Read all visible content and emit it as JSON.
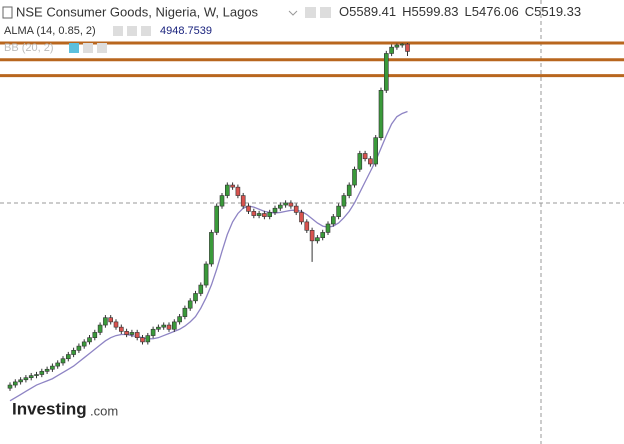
{
  "chart_data": {
    "type": "candlestick",
    "title": "NSE Consumer Goods, Nigeria, W, Lagos",
    "ohlc_labels": [
      "O",
      "H",
      "L",
      "C"
    ],
    "indicator": {
      "name": "ALMA (14, 0.85, 2)",
      "color": "#8e84c4",
      "values": [
        2200,
        2230,
        2260,
        2290,
        2320,
        2350,
        2370,
        2390,
        2410,
        2440,
        2470,
        2500,
        2530,
        2570,
        2610,
        2650,
        2690,
        2730,
        2770,
        2800,
        2820,
        2830,
        2830,
        2820,
        2810,
        2800,
        2790,
        2790,
        2800,
        2820,
        2840,
        2860,
        2880,
        2910,
        2950,
        3000,
        3080,
        3180,
        3300,
        3450,
        3620,
        3780,
        3900,
        3980,
        4030,
        4050,
        4040,
        4020,
        4000,
        3990,
        3985,
        3990,
        4000,
        4010,
        4010,
        4000,
        3970,
        3930,
        3890,
        3860,
        3850,
        3860,
        3890,
        3940,
        4000,
        4080,
        4180,
        4280,
        4380,
        4480,
        4600,
        4720,
        4830,
        4900,
        4930,
        4948.7539
      ]
    },
    "hidden_indicator": "BB (20, 2)",
    "open": [
      2320,
      2350,
      2380,
      2400,
      2420,
      2440,
      2450,
      2480,
      2500,
      2530,
      2560,
      2600,
      2640,
      2680,
      2720,
      2760,
      2800,
      2850,
      2920,
      2990,
      2950,
      2900,
      2860,
      2830,
      2850,
      2800,
      2760,
      2820,
      2880,
      2900,
      2920,
      2880,
      2950,
      3000,
      3080,
      3150,
      3220,
      3300,
      3500,
      3800,
      4050,
      4150,
      4250,
      4230,
      4150,
      4050,
      4000,
      3960,
      3980,
      3950,
      3990,
      4030,
      4060,
      4080,
      4050,
      3990,
      3900,
      3820,
      3720,
      3750,
      3800,
      3880,
      3950,
      4050,
      4150,
      4250,
      4400,
      4550,
      4500,
      4450,
      4700,
      5150,
      5500,
      5560,
      5580,
      5589.41
    ],
    "high": [
      2375,
      2405,
      2425,
      2445,
      2465,
      2475,
      2505,
      2525,
      2555,
      2585,
      2625,
      2665,
      2705,
      2745,
      2785,
      2825,
      2875,
      2945,
      3015,
      3015,
      2975,
      2925,
      2885,
      2875,
      2875,
      2825,
      2845,
      2905,
      2925,
      2945,
      2945,
      2975,
      3025,
      3105,
      3175,
      3245,
      3325,
      3525,
      3825,
      4075,
      4175,
      4275,
      4275,
      4255,
      4175,
      4075,
      4025,
      4005,
      4005,
      4015,
      4055,
      4085,
      4105,
      4105,
      4075,
      4015,
      3925,
      3845,
      3775,
      3825,
      3905,
      3975,
      4075,
      4175,
      4275,
      4425,
      4575,
      4575,
      4525,
      4725,
      5175,
      5525,
      5585,
      5595,
      5598,
      5599.83
    ],
    "low": [
      2295,
      2325,
      2355,
      2375,
      2395,
      2415,
      2425,
      2455,
      2475,
      2505,
      2535,
      2575,
      2615,
      2655,
      2695,
      2735,
      2775,
      2825,
      2895,
      2925,
      2875,
      2835,
      2805,
      2805,
      2775,
      2735,
      2735,
      2795,
      2855,
      2875,
      2855,
      2855,
      2925,
      2975,
      3055,
      3125,
      3195,
      3275,
      3475,
      3775,
      4025,
      4125,
      4205,
      4125,
      4025,
      3975,
      3935,
      3935,
      3925,
      3925,
      3965,
      4005,
      4035,
      4025,
      3965,
      3875,
      3795,
      3520,
      3695,
      3725,
      3775,
      3855,
      3925,
      4025,
      4125,
      4225,
      4375,
      4475,
      4425,
      4425,
      4675,
      5125,
      5475,
      5535,
      5555,
      5476.06
    ],
    "close": [
      2350,
      2380,
      2400,
      2420,
      2440,
      2450,
      2480,
      2500,
      2530,
      2560,
      2600,
      2640,
      2680,
      2720,
      2760,
      2800,
      2850,
      2920,
      2990,
      2950,
      2900,
      2860,
      2830,
      2850,
      2800,
      2760,
      2820,
      2880,
      2900,
      2920,
      2880,
      2950,
      3000,
      3080,
      3150,
      3220,
      3300,
      3500,
      3800,
      4050,
      4150,
      4250,
      4230,
      4150,
      4050,
      4000,
      3960,
      3980,
      3950,
      3990,
      4030,
      4060,
      4080,
      4050,
      3990,
      3900,
      3820,
      3720,
      3750,
      3800,
      3880,
      3950,
      4050,
      4150,
      4250,
      4400,
      4550,
      4500,
      4450,
      4700,
      5150,
      5500,
      5560,
      5580,
      5590,
      5519.33
    ],
    "up_color": "#3a9a3a",
    "down_color": "#d9534f",
    "hlines": [
      5600,
      5440,
      5290
    ],
    "hline_color": "#b8661e",
    "ylim": [
      1790,
      6008
    ],
    "brand": {
      "name": "Investing",
      "suffix": ".com"
    }
  }
}
